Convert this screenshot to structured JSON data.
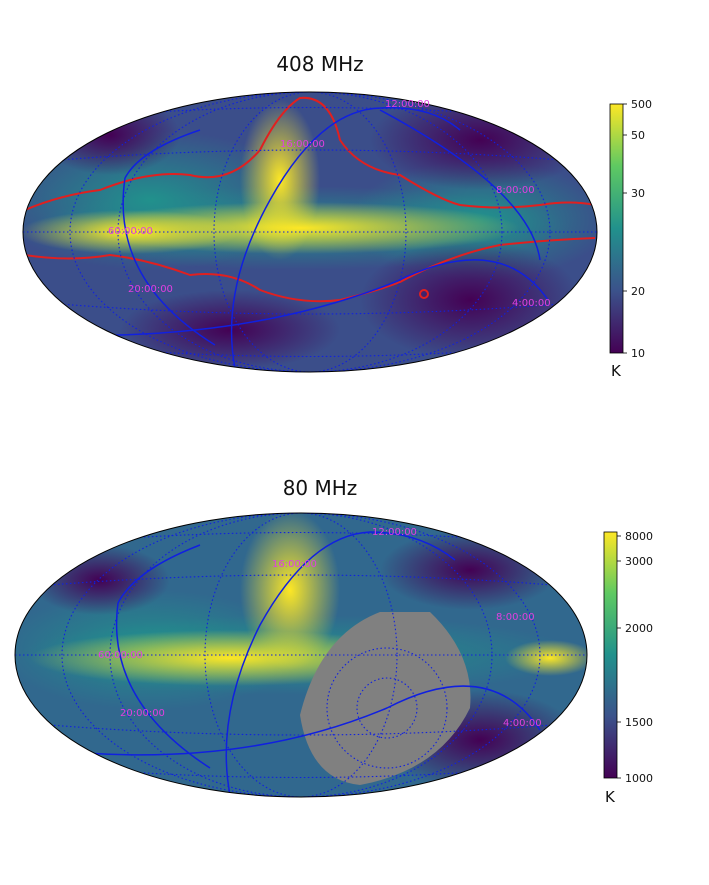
{
  "chart_data": [
    {
      "type": "heatmap",
      "title": "408 MHz",
      "projection": "mollweide",
      "colormap": "viridis",
      "colorbar": {
        "ticks": [
          "500",
          "50",
          "30",
          "20",
          "10"
        ],
        "unit": "K",
        "scale": "log"
      },
      "overlay_contour_color": "#e02020",
      "grid_color": "#1020e0",
      "ra_labels": [
        "12:00:00",
        "16:00:00",
        "8:00:00",
        "60:00:00",
        "4:00:00",
        "20:00:00"
      ],
      "masked_region": false
    },
    {
      "type": "heatmap",
      "title": "80 MHz",
      "projection": "mollweide",
      "colormap": "viridis",
      "colorbar": {
        "ticks": [
          "8000",
          "3000",
          "2000",
          "1500",
          "1000"
        ],
        "unit": "K",
        "scale": "log"
      },
      "grid_color": "#1020e0",
      "ra_labels": [
        "12:00:00",
        "16:00:00",
        "8:00:00",
        "60:00:00",
        "4:00:00",
        "20:00:00"
      ],
      "masked_region": true,
      "mask_color": "#808080"
    }
  ]
}
